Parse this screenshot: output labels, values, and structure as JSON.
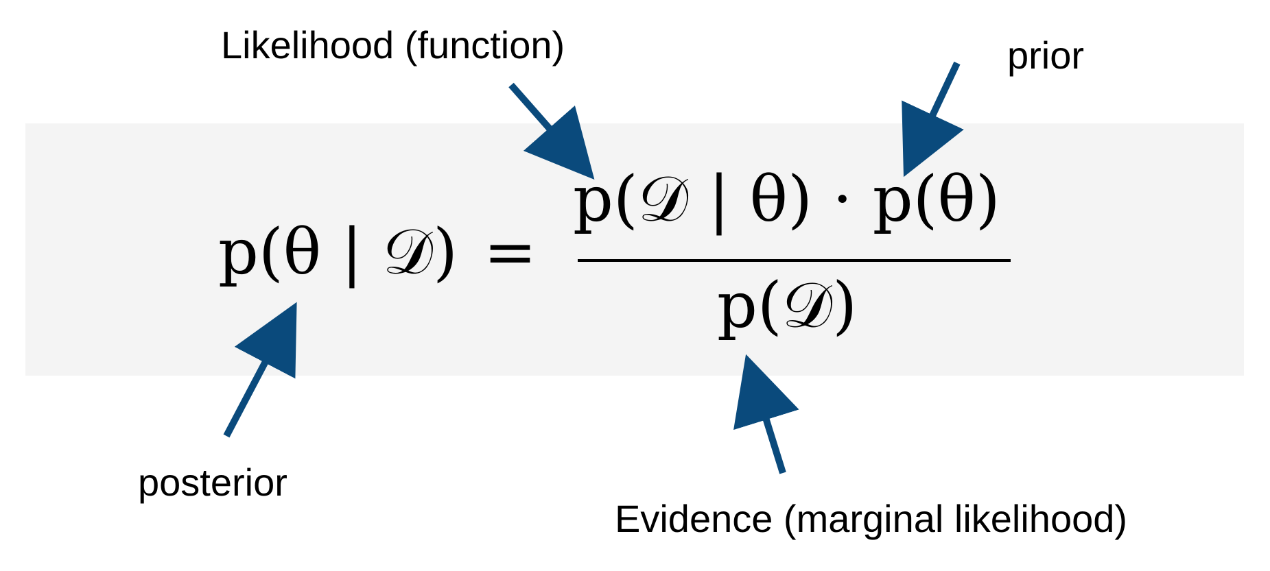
{
  "annotations": {
    "likelihood": "Likelihood (function)",
    "prior": "prior",
    "posterior": "posterior",
    "evidence": "Evidence (marginal likelihood)"
  },
  "equation": {
    "lhs": "p(θ | 𝒟)",
    "equals": "=",
    "numerator": "p(𝒟 | θ) · p(θ)",
    "denominator": "p(𝒟)"
  },
  "colors": {
    "arrow": "#0a4a7c",
    "panel_background": "#f4f4f4",
    "text": "#000000"
  }
}
